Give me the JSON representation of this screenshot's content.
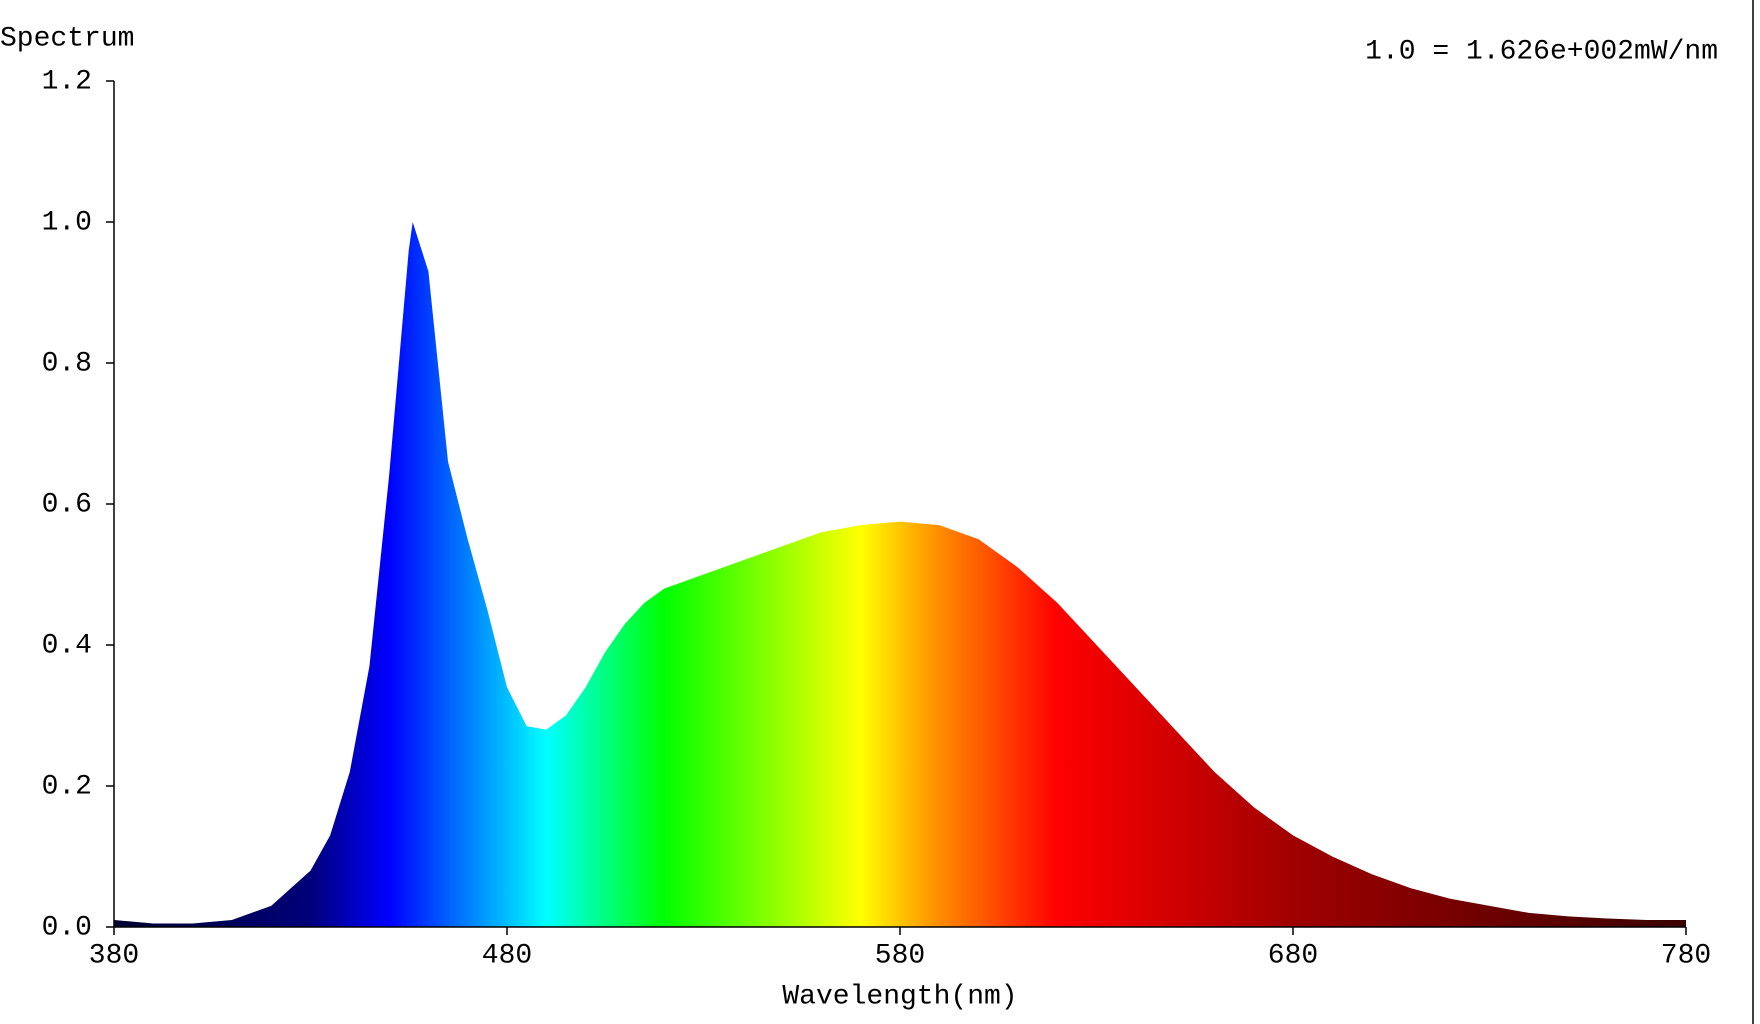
{
  "chart_data": {
    "type": "area",
    "title": "Spectrum",
    "annotation": "1.0 = 1.626e+002mW/nm",
    "x_label": "Wavelength(nm)",
    "x": [
      380,
      390,
      400,
      410,
      420,
      430,
      435,
      440,
      445,
      450,
      455,
      456,
      460,
      465,
      470,
      475,
      480,
      485,
      490,
      495,
      500,
      505,
      510,
      515,
      520,
      530,
      540,
      550,
      560,
      570,
      580,
      590,
      600,
      610,
      620,
      630,
      640,
      650,
      660,
      670,
      680,
      690,
      700,
      710,
      720,
      730,
      740,
      750,
      760,
      770,
      780
    ],
    "series": [
      {
        "values": [
          0.01,
          0.005,
          0.005,
          0.01,
          0.03,
          0.08,
          0.13,
          0.22,
          0.37,
          0.64,
          0.96,
          1.0,
          0.93,
          0.66,
          0.55,
          0.45,
          0.34,
          0.285,
          0.28,
          0.3,
          0.34,
          0.39,
          0.43,
          0.46,
          0.48,
          0.5,
          0.52,
          0.54,
          0.56,
          0.57,
          0.575,
          0.57,
          0.55,
          0.51,
          0.46,
          0.4,
          0.34,
          0.28,
          0.22,
          0.17,
          0.13,
          0.1,
          0.075,
          0.055,
          0.04,
          0.03,
          0.02,
          0.015,
          0.012,
          0.01,
          0.01
        ]
      }
    ],
    "xlim": [
      380,
      780
    ],
    "ylim": [
      0,
      1.2
    ],
    "xticks": [
      380,
      480,
      580,
      680,
      780
    ],
    "yticks": [
      {
        "value": 0,
        "label": "0.0"
      },
      {
        "value": 0.2,
        "label": "0.2"
      },
      {
        "value": 0.4,
        "label": "0.4"
      },
      {
        "value": 0.6,
        "label": "0.6"
      },
      {
        "value": 0.8,
        "label": "0.8"
      },
      {
        "value": 1.0,
        "label": "1.0"
      },
      {
        "value": 1.2,
        "label": "1.2"
      }
    ]
  }
}
